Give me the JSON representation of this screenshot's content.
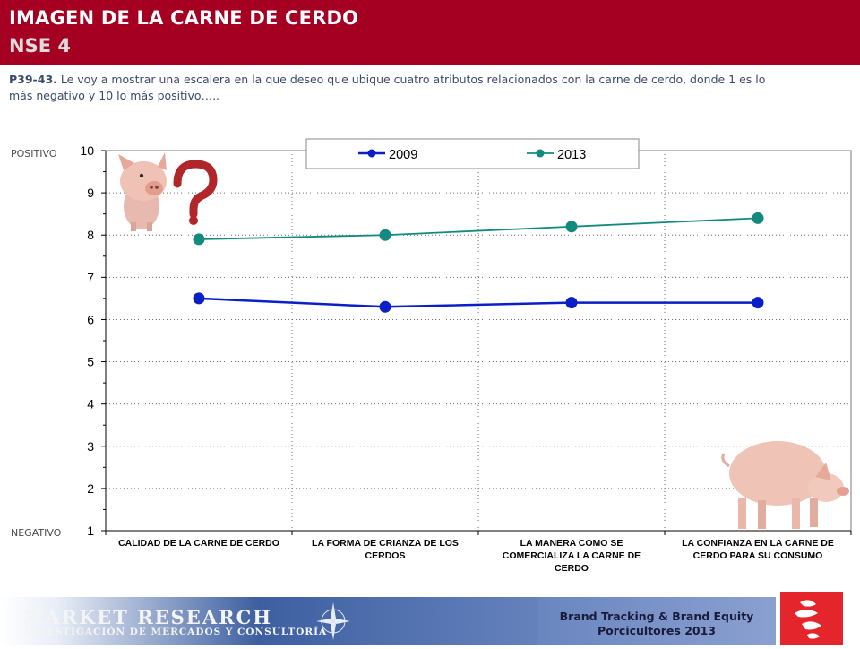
{
  "header": {
    "title": "IMAGEN DE LA CARNE DE CERDO",
    "subtitle": "NSE 4",
    "background_color": "#a50021"
  },
  "question": {
    "code": "P39-43.",
    "text": " Le voy a mostrar una escalera en la que deseo que ubique cuatro atributos relacionados con la carne de cerdo, donde 1 es lo más negativo y 10 lo más positivo….."
  },
  "side_labels": {
    "top": "POSITIVO",
    "bottom": "NEGATIVO"
  },
  "chart_data": {
    "type": "line",
    "categories": [
      "CALIDAD DE LA CARNE DE CERDO",
      "LA FORMA DE CRIANZA DE LOS CERDOS",
      "LA MANERA COMO SE COMERCIALIZA LA CARNE DE CERDO",
      "LA CONFIANZA EN LA CARNE DE CERDO PARA SU CONSUMO"
    ],
    "category_lines": [
      [
        "CALIDAD DE LA CARNE DE CERDO"
      ],
      [
        "LA FORMA DE CRIANZA DE LOS",
        "CERDOS"
      ],
      [
        "LA MANERA COMO SE",
        "COMERCIALIZA LA CARNE DE",
        "CERDO"
      ],
      [
        "LA CONFIANZA EN LA CARNE DE",
        "CERDO PARA SU CONSUMO"
      ]
    ],
    "series": [
      {
        "name": "2009",
        "values": [
          6.5,
          6.3,
          6.4,
          6.4
        ],
        "color": "#0a1fc8"
      },
      {
        "name": "2013",
        "values": [
          7.9,
          8.0,
          8.2,
          8.4
        ],
        "color": "#138a7e"
      }
    ],
    "y_ticks": [
      "1",
      "2",
      "3",
      "4",
      "5",
      "6",
      "7",
      "8",
      "9",
      "10"
    ],
    "ylim": [
      1,
      10
    ],
    "grid": true,
    "legend_position": "top-center",
    "title": "",
    "xlabel": "",
    "ylabel": ""
  },
  "footer": {
    "brand_title": "MARKET RESEARCH",
    "brand_subtitle": "INVESTIGACIÓN DE MERCADOS Y CONSULTORÍA",
    "tracking_line1": "Brand Tracking & Brand Equity",
    "tracking_line2": "Porcicultores 2013",
    "logo_color": "#e4262c"
  },
  "images": {
    "top_left": "pig-face-with-question-mark",
    "bottom_right": "piglet-standing"
  }
}
